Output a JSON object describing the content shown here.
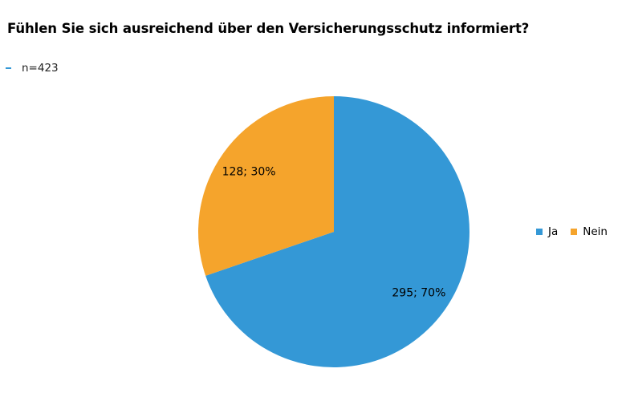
{
  "chart_data": {
    "type": "pie",
    "title": "Fühlen Sie sich ausreichend über den Versicherungsschutz informiert?",
    "subtitle": "n=423",
    "categories": [
      "Ja",
      "Nein"
    ],
    "values": [
      295,
      128
    ],
    "percents": [
      70,
      30
    ],
    "data_labels": [
      "295; 70%",
      "128; 30%"
    ],
    "colors": [
      "#3498d6",
      "#f5a42c"
    ],
    "legend_position": "right",
    "start_angle": "12 o'clock",
    "direction": "clockwise"
  }
}
